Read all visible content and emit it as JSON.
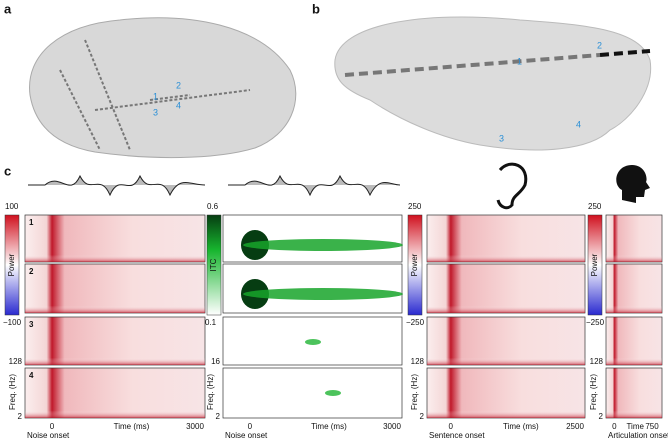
{
  "panel_labels": [
    "a",
    "b",
    "c"
  ],
  "panel_a": {
    "electrodes": [
      "1",
      "2",
      "3",
      "4"
    ]
  },
  "panel_b": {
    "electrodes": [
      "1",
      "2",
      "3",
      "4"
    ]
  },
  "panel_c": {
    "row_labels": [
      "1",
      "2",
      "3",
      "4"
    ],
    "columns": [
      {
        "colorbar": {
          "max": "100",
          "label": "Power",
          "min": "−100"
        },
        "freq_axis": {
          "max": "128",
          "label": "Freq. (Hz)",
          "min": "2"
        },
        "x_ticks": [
          "0",
          "3000"
        ],
        "x_label": "Time (ms)",
        "onset": "Noise onset"
      },
      {
        "colorbar": {
          "max": "0.6",
          "label": "ITC",
          "min": "0.1"
        },
        "freq_axis": {
          "max": "16",
          "label": "Freq. (Hz)",
          "min": "2"
        },
        "x_ticks": [
          "0",
          "3000"
        ],
        "x_label": "Time (ms)",
        "onset": "Noise onset"
      },
      {
        "colorbar": {
          "max": "250",
          "label": "Power",
          "min": "−250"
        },
        "freq_axis": {
          "max": "128",
          "label": "Freq. (Hz)",
          "min": "2"
        },
        "x_ticks": [
          "0",
          "2500"
        ],
        "x_label": "Time (ms)",
        "onset": "Sentence onset"
      },
      {
        "colorbar": {
          "max": "250",
          "label": "Power",
          "min": "−250"
        },
        "freq_axis": {
          "max": "128",
          "label": "Freq. (Hz)",
          "min": "2"
        },
        "x_ticks": [
          "0",
          "750"
        ],
        "x_label": "Time",
        "onset": "Articulation onset"
      }
    ]
  }
}
